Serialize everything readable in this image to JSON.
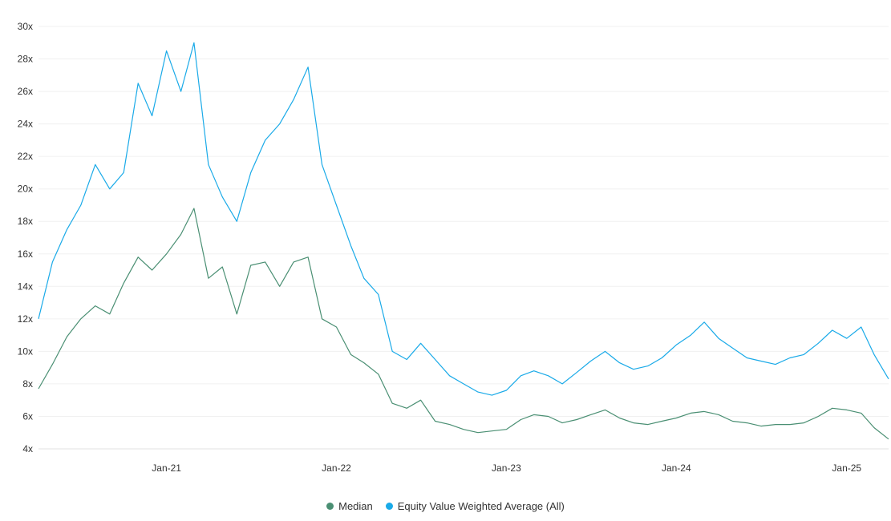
{
  "chart_data": {
    "type": "line",
    "title": "",
    "xlabel": "",
    "ylabel": "",
    "x_ticks": [
      {
        "date": "2021-01-01",
        "label": "Jan-21"
      },
      {
        "date": "2022-01-01",
        "label": "Jan-22"
      },
      {
        "date": "2023-01-01",
        "label": "Jan-23"
      },
      {
        "date": "2024-01-01",
        "label": "Jan-24"
      },
      {
        "date": "2025-01-01",
        "label": "Jan-25"
      }
    ],
    "xlim": [
      "2020-04-01",
      "2025-04-01"
    ],
    "ylim": [
      4,
      30
    ],
    "y_ticks": [
      4,
      6,
      8,
      10,
      12,
      14,
      16,
      18,
      20,
      22,
      24,
      26,
      28,
      30
    ],
    "y_tick_suffix": "x",
    "grid": "horizontal",
    "legend_position": "bottom-center",
    "series": [
      {
        "name": "Median",
        "color": "#4a8f73",
        "points": [
          [
            "2020-04-01",
            7.7
          ],
          [
            "2020-05-01",
            9.2
          ],
          [
            "2020-06-01",
            10.9
          ],
          [
            "2020-07-01",
            12.0
          ],
          [
            "2020-08-01",
            12.8
          ],
          [
            "2020-09-01",
            12.3
          ],
          [
            "2020-10-01",
            14.2
          ],
          [
            "2020-11-01",
            15.8
          ],
          [
            "2020-12-01",
            15.0
          ],
          [
            "2021-01-01",
            16.0
          ],
          [
            "2021-02-01",
            17.2
          ],
          [
            "2021-03-01",
            18.8
          ],
          [
            "2021-04-01",
            14.5
          ],
          [
            "2021-05-01",
            15.2
          ],
          [
            "2021-06-01",
            12.3
          ],
          [
            "2021-07-01",
            15.3
          ],
          [
            "2021-08-01",
            15.5
          ],
          [
            "2021-09-01",
            14.0
          ],
          [
            "2021-10-01",
            15.5
          ],
          [
            "2021-11-01",
            15.8
          ],
          [
            "2021-12-01",
            12.0
          ],
          [
            "2022-01-01",
            11.5
          ],
          [
            "2022-02-01",
            9.8
          ],
          [
            "2022-03-01",
            9.3
          ],
          [
            "2022-04-01",
            8.6
          ],
          [
            "2022-05-01",
            6.8
          ],
          [
            "2022-06-01",
            6.5
          ],
          [
            "2022-07-01",
            7.0
          ],
          [
            "2022-08-01",
            5.7
          ],
          [
            "2022-09-01",
            5.5
          ],
          [
            "2022-10-01",
            5.2
          ],
          [
            "2022-11-01",
            5.0
          ],
          [
            "2022-12-01",
            5.1
          ],
          [
            "2023-01-01",
            5.2
          ],
          [
            "2023-02-01",
            5.8
          ],
          [
            "2023-03-01",
            6.1
          ],
          [
            "2023-04-01",
            6.0
          ],
          [
            "2023-05-01",
            5.6
          ],
          [
            "2023-06-01",
            5.8
          ],
          [
            "2023-07-01",
            6.1
          ],
          [
            "2023-08-01",
            6.4
          ],
          [
            "2023-09-01",
            5.9
          ],
          [
            "2023-10-01",
            5.6
          ],
          [
            "2023-11-01",
            5.5
          ],
          [
            "2023-12-01",
            5.7
          ],
          [
            "2024-01-01",
            5.9
          ],
          [
            "2024-02-01",
            6.2
          ],
          [
            "2024-03-01",
            6.3
          ],
          [
            "2024-04-01",
            6.1
          ],
          [
            "2024-05-01",
            5.7
          ],
          [
            "2024-06-01",
            5.6
          ],
          [
            "2024-07-01",
            5.4
          ],
          [
            "2024-08-01",
            5.5
          ],
          [
            "2024-09-01",
            5.5
          ],
          [
            "2024-10-01",
            5.6
          ],
          [
            "2024-11-01",
            6.0
          ],
          [
            "2024-12-01",
            6.5
          ],
          [
            "2025-01-01",
            6.4
          ],
          [
            "2025-02-01",
            6.2
          ],
          [
            "2025-03-01",
            5.3
          ],
          [
            "2025-04-01",
            4.6
          ]
        ]
      },
      {
        "name": "Equity Value Weighted Average (All)",
        "color": "#1aaae8",
        "points": [
          [
            "2020-04-01",
            12.0
          ],
          [
            "2020-05-01",
            15.5
          ],
          [
            "2020-06-01",
            17.5
          ],
          [
            "2020-07-01",
            19.0
          ],
          [
            "2020-08-01",
            21.5
          ],
          [
            "2020-09-01",
            20.0
          ],
          [
            "2020-10-01",
            21.0
          ],
          [
            "2020-11-01",
            26.5
          ],
          [
            "2020-12-01",
            24.5
          ],
          [
            "2021-01-01",
            28.5
          ],
          [
            "2021-02-01",
            26.0
          ],
          [
            "2021-03-01",
            29.0
          ],
          [
            "2021-04-01",
            21.5
          ],
          [
            "2021-05-01",
            19.5
          ],
          [
            "2021-06-01",
            18.0
          ],
          [
            "2021-07-01",
            21.0
          ],
          [
            "2021-08-01",
            23.0
          ],
          [
            "2021-09-01",
            24.0
          ],
          [
            "2021-10-01",
            25.5
          ],
          [
            "2021-11-01",
            27.5
          ],
          [
            "2021-12-01",
            21.5
          ],
          [
            "2022-01-01",
            19.0
          ],
          [
            "2022-02-01",
            16.5
          ],
          [
            "2022-03-01",
            14.5
          ],
          [
            "2022-04-01",
            13.5
          ],
          [
            "2022-05-01",
            10.0
          ],
          [
            "2022-06-01",
            9.5
          ],
          [
            "2022-07-01",
            10.5
          ],
          [
            "2022-08-01",
            9.5
          ],
          [
            "2022-09-01",
            8.5
          ],
          [
            "2022-10-01",
            8.0
          ],
          [
            "2022-11-01",
            7.5
          ],
          [
            "2022-12-01",
            7.3
          ],
          [
            "2023-01-01",
            7.6
          ],
          [
            "2023-02-01",
            8.5
          ],
          [
            "2023-03-01",
            8.8
          ],
          [
            "2023-04-01",
            8.5
          ],
          [
            "2023-05-01",
            8.0
          ],
          [
            "2023-06-01",
            8.7
          ],
          [
            "2023-07-01",
            9.4
          ],
          [
            "2023-08-01",
            10.0
          ],
          [
            "2023-09-01",
            9.3
          ],
          [
            "2023-10-01",
            8.9
          ],
          [
            "2023-11-01",
            9.1
          ],
          [
            "2023-12-01",
            9.6
          ],
          [
            "2024-01-01",
            10.4
          ],
          [
            "2024-02-01",
            11.0
          ],
          [
            "2024-03-01",
            11.8
          ],
          [
            "2024-04-01",
            10.8
          ],
          [
            "2024-05-01",
            10.2
          ],
          [
            "2024-06-01",
            9.6
          ],
          [
            "2024-07-01",
            9.4
          ],
          [
            "2024-08-01",
            9.2
          ],
          [
            "2024-09-01",
            9.6
          ],
          [
            "2024-10-01",
            9.8
          ],
          [
            "2024-11-01",
            10.5
          ],
          [
            "2024-12-01",
            11.3
          ],
          [
            "2025-01-01",
            10.8
          ],
          [
            "2025-02-01",
            11.5
          ],
          [
            "2025-03-01",
            9.8
          ],
          [
            "2025-04-01",
            8.3
          ]
        ]
      }
    ]
  }
}
